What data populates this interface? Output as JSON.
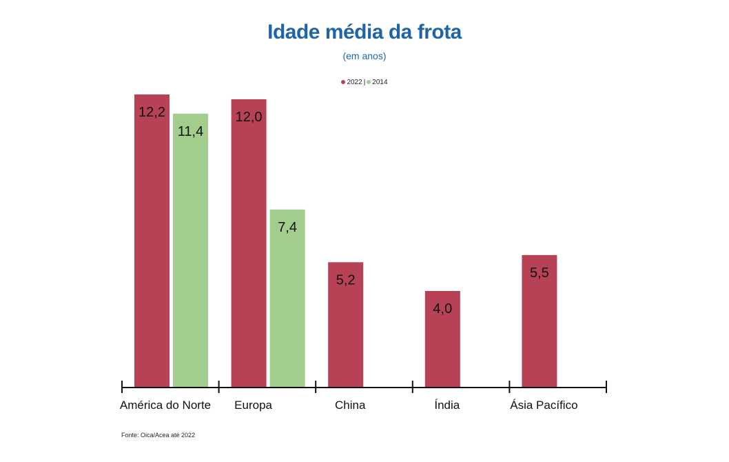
{
  "chart_data": {
    "type": "bar",
    "title": "Idade média da frota",
    "subtitle": "(em anos)",
    "categories": [
      "América do Norte",
      "Europa",
      "China",
      "Índia",
      "Ásia Pacífico"
    ],
    "series": [
      {
        "name": "2022",
        "color": "#b84255",
        "values": [
          12.2,
          12.0,
          5.2,
          4.0,
          5.5
        ],
        "labels": [
          "12,2",
          "12,0",
          "5,2",
          "4,0",
          "5,5"
        ]
      },
      {
        "name": "2014",
        "color": "#a3cd8c",
        "values": [
          11.4,
          7.4,
          null,
          null,
          null
        ],
        "labels": [
          "11,4",
          "7,4",
          null,
          null,
          null
        ]
      }
    ],
    "legend": {
      "position": "top-center",
      "separator": "|"
    },
    "ylim": [
      0,
      12.2
    ],
    "grid": false,
    "source": "Fonte: Oica/Acea até 2022"
  }
}
